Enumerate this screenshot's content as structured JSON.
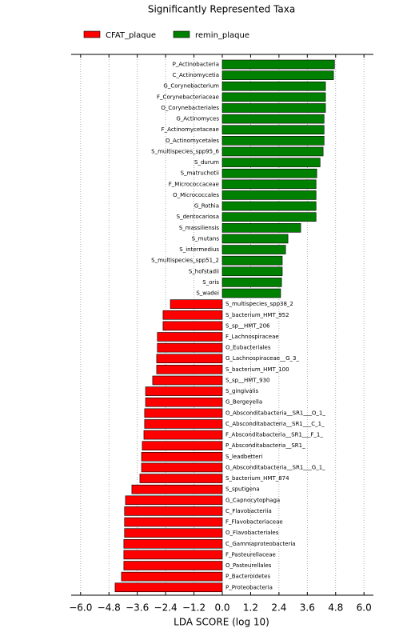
{
  "chart_data": {
    "type": "hbar",
    "title": "Significantly Represented Taxa",
    "xlabel": "LDA SCORE (log 10)",
    "categories": [
      "P_Actinobacteria",
      "C_Actinomycetia",
      "G_Corynebacterium",
      "F_Corynebacteriaceae",
      "O_Corynebacteriales",
      "G_Actinomyces",
      "F_Actinomycetaceae",
      "O_Actinomycetales",
      "S_multispecies_spp95_6",
      "S_durum",
      "S_matruchotii",
      "F_Micrococcaceae",
      "O_Micrococcales",
      "G_Rothia",
      "S_dentocariosa",
      "S_massiliensis",
      "S_mutans",
      "S_intermedius",
      "S_multispecies_spp51_2",
      "S_hofstadii",
      "S_oris",
      "S_wadei",
      "S_multispecies_spp38_2",
      "S_bacterium_HMT_952",
      "S_sp__HMT_206",
      "F_Lachnospiraceae",
      "O_Eubacteriales",
      "G_Lachnospiraceae__G_3_",
      "S_bacterium_HMT_100",
      "S_sp__HMT_930",
      "S_gingivalis",
      "G_Bergeyella",
      "O_Absconditabacteria__SR1___O_1_",
      "C_Absconditabacteria__SR1___C_1_",
      "F_Absconditabacteria__SR1___F_1_",
      "P_Absconditabacteria__SR1_",
      "S_leadbetteri",
      "G_Absconditabacteria__SR1___G_1_",
      "S_bacterium_HMT_874",
      "S_sputigena",
      "G_Capnocytophaga",
      "C_Flavobacteriia",
      "F_Flavobacteriaceae",
      "O_Flavobacteriales",
      "C_Gammaproteobacteria",
      "F_Pasteurellaceae",
      "O_Pasteurellales",
      "P_Bacteroidetes",
      "P_Proteobacteria"
    ],
    "series": [
      {
        "name": "CFAT_plaque",
        "color": "#ff0000",
        "values": [
          null,
          null,
          null,
          null,
          null,
          null,
          null,
          null,
          null,
          null,
          null,
          null,
          null,
          null,
          null,
          null,
          null,
          null,
          null,
          null,
          null,
          null,
          -2.2,
          -2.51,
          -2.51,
          -2.75,
          -2.75,
          -2.78,
          -2.78,
          -2.95,
          -3.25,
          -3.25,
          -3.29,
          -3.29,
          -3.32,
          -3.39,
          -3.42,
          -3.42,
          -3.49,
          -3.83,
          -4.1,
          -4.14,
          -4.14,
          -4.14,
          -4.17,
          -4.17,
          -4.17,
          -4.27,
          -4.54
        ]
      },
      {
        "name": "remin_plaque",
        "color": "#008000",
        "values": [
          4.75,
          4.71,
          4.37,
          4.37,
          4.37,
          4.31,
          4.31,
          4.31,
          4.27,
          4.14,
          4.0,
          3.97,
          3.97,
          3.97,
          3.97,
          3.32,
          2.78,
          2.68,
          2.54,
          2.54,
          2.51,
          2.47,
          null,
          null,
          null,
          null,
          null,
          null,
          null,
          null,
          null,
          null,
          null,
          null,
          null,
          null,
          null,
          null,
          null,
          null,
          null,
          null,
          null,
          null,
          null,
          null,
          null,
          null,
          null
        ]
      }
    ],
    "xlim": [
      -6.4,
      6.4
    ],
    "xticks": [
      {
        "value": -6,
        "label": "−6.0"
      },
      {
        "value": -4.8,
        "label": "−4.8"
      },
      {
        "value": -3.6,
        "label": "−3.6"
      },
      {
        "value": -2.4,
        "label": "−2.4"
      },
      {
        "value": -1.2,
        "label": "−1.2"
      },
      {
        "value": 0,
        "label": "0.0"
      },
      1.2,
      2.4,
      3.6,
      4.8,
      {
        "value": 6,
        "label": "6.0"
      }
    ],
    "grid": true
  }
}
